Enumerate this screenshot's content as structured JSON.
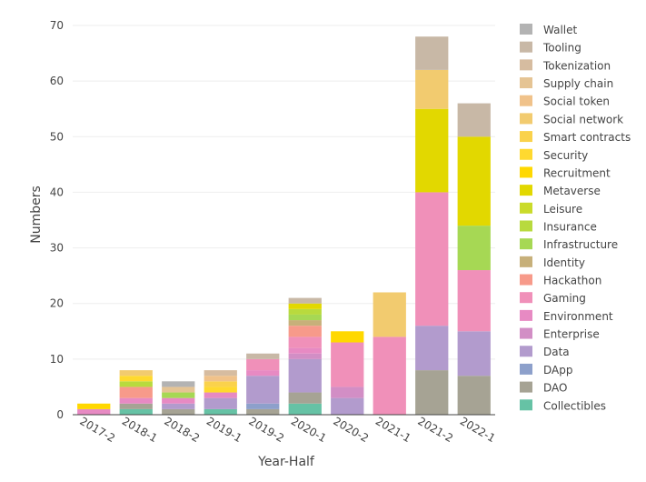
{
  "chart_data": {
    "type": "bar",
    "stacked": true,
    "title": "",
    "xlabel": "Year-Half",
    "ylabel": "Numbers",
    "ylim": [
      0,
      70
    ],
    "yticks": [
      0,
      10,
      20,
      30,
      40,
      50,
      60,
      70
    ],
    "categories": [
      "2017-2",
      "2018-1",
      "2018-2",
      "2019-1",
      "2019-2",
      "2020-1",
      "2020-2",
      "2021-1",
      "2021-2",
      "2022-1"
    ],
    "legend_position": "right",
    "series": [
      {
        "name": "Collectibles",
        "color": "#66C2A5",
        "values": [
          0,
          1,
          0,
          1,
          0,
          2,
          0,
          0,
          0,
          0
        ]
      },
      {
        "name": "DAO",
        "color": "#A6A394",
        "values": [
          0,
          1,
          1,
          0,
          1,
          2,
          0,
          0,
          8,
          7
        ]
      },
      {
        "name": "DApp",
        "color": "#8DA0CB",
        "values": [
          0,
          0,
          0,
          0,
          1,
          0,
          0,
          0,
          0,
          0
        ]
      },
      {
        "name": "Data",
        "color": "#B29BCD",
        "values": [
          0,
          0,
          1,
          2,
          5,
          6,
          3,
          0,
          8,
          8
        ]
      },
      {
        "name": "Enterprise",
        "color": "#D28EC5",
        "values": [
          0,
          0,
          0,
          0,
          0,
          1,
          2,
          0,
          0,
          0
        ]
      },
      {
        "name": "Environment",
        "color": "#E78AC3",
        "values": [
          1,
          1,
          1,
          1,
          1,
          1,
          0,
          0,
          0,
          0
        ]
      },
      {
        "name": "Gaming",
        "color": "#F090B9",
        "values": [
          0,
          0,
          0,
          0,
          2,
          2,
          8,
          14,
          24,
          11
        ]
      },
      {
        "name": "Hackathon",
        "color": "#F79A8A",
        "values": [
          0,
          2,
          0,
          0,
          0,
          2,
          0,
          0,
          0,
          0
        ]
      },
      {
        "name": "Identity",
        "color": "#C7B07A",
        "values": [
          0,
          0,
          0,
          0,
          0,
          1,
          0,
          0,
          0,
          0
        ]
      },
      {
        "name": "Infrastructure",
        "color": "#A6D854",
        "values": [
          0,
          0,
          1,
          0,
          0,
          1,
          0,
          0,
          0,
          8
        ]
      },
      {
        "name": "Insurance",
        "color": "#B8DA3E",
        "values": [
          0,
          1,
          0,
          0,
          0,
          1,
          0,
          0,
          0,
          0
        ]
      },
      {
        "name": "Leisure",
        "color": "#CADB2A",
        "values": [
          0,
          0,
          0,
          0,
          0,
          0,
          0,
          0,
          0,
          0
        ]
      },
      {
        "name": "Metaverse",
        "color": "#E2D800",
        "values": [
          0,
          0,
          0,
          0,
          0,
          1,
          0,
          0,
          15,
          16
        ]
      },
      {
        "name": "Recruitment",
        "color": "#FFD800",
        "values": [
          1,
          0,
          0,
          0,
          0,
          0,
          2,
          0,
          0,
          0
        ]
      },
      {
        "name": "Security",
        "color": "#FFD92F",
        "values": [
          0,
          1,
          0,
          1,
          0,
          0,
          0,
          0,
          0,
          0
        ]
      },
      {
        "name": "Smart contracts",
        "color": "#FAD24C",
        "values": [
          0,
          0,
          0,
          1,
          0,
          0,
          0,
          0,
          0,
          0
        ]
      },
      {
        "name": "Social network",
        "color": "#F2CB6F",
        "values": [
          0,
          1,
          0,
          0,
          0,
          0,
          0,
          8,
          7,
          0
        ]
      },
      {
        "name": "Social token",
        "color": "#F0C28A",
        "values": [
          0,
          0,
          0,
          1,
          0,
          0,
          0,
          0,
          0,
          0
        ]
      },
      {
        "name": "Supply chain",
        "color": "#E5C494",
        "values": [
          0,
          0,
          1,
          0,
          0,
          0,
          0,
          0,
          0,
          0
        ]
      },
      {
        "name": "Tokenization",
        "color": "#D6BCA0",
        "values": [
          0,
          0,
          0,
          1,
          0,
          0,
          0,
          0,
          0,
          0
        ]
      },
      {
        "name": "Tooling",
        "color": "#C8B8A6",
        "values": [
          0,
          0,
          0,
          0,
          1,
          1,
          0,
          0,
          6,
          6
        ]
      },
      {
        "name": "Wallet",
        "color": "#B3B3B3",
        "values": [
          0,
          0,
          1,
          0,
          0,
          0,
          0,
          0,
          0,
          0
        ]
      }
    ]
  }
}
